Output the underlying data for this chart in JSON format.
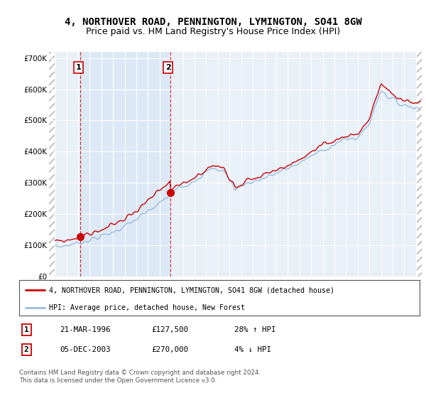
{
  "title": "4, NORTHOVER ROAD, PENNINGTON, LYMINGTON, SO41 8GW",
  "subtitle": "Price paid vs. HM Land Registry's House Price Index (HPI)",
  "title_fontsize": 10,
  "subtitle_fontsize": 9,
  "background_color": "#ffffff",
  "plot_bg_color": "#e8f0f8",
  "hatch_bg_color": "#cccccc",
  "highlight_color": "#dce8f5",
  "ylim": [
    0,
    720000
  ],
  "yticks": [
    0,
    100000,
    200000,
    300000,
    400000,
    500000,
    600000,
    700000
  ],
  "ytick_labels": [
    "£0",
    "£100K",
    "£200K",
    "£300K",
    "£400K",
    "£500K",
    "£600K",
    "£700K"
  ],
  "sale1_t": 1996.21,
  "sale1_price": 127500,
  "sale1_label": "1",
  "sale2_t": 2003.92,
  "sale2_price": 270000,
  "sale2_label": "2",
  "xlim_start": 1993.5,
  "xlim_end": 2025.5,
  "hatch_left_end": 1994.0,
  "hatch_right_start": 2025.0,
  "legend_line1": "4, NORTHOVER ROAD, PENNINGTON, LYMINGTON, SO41 8GW (detached house)",
  "legend_line2": "HPI: Average price, detached house, New Forest",
  "table_row1": [
    "1",
    "21-MAR-1996",
    "£127,500",
    "28% ↑ HPI"
  ],
  "table_row2": [
    "2",
    "05-DEC-2003",
    "£270,000",
    "4% ↓ HPI"
  ],
  "footer": "Contains HM Land Registry data © Crown copyright and database right 2024.\nThis data is licensed under the Open Government Licence v3.0.",
  "red_color": "#cc0000",
  "hpi_color": "#99bbdd",
  "prop_color": "#cc0000"
}
